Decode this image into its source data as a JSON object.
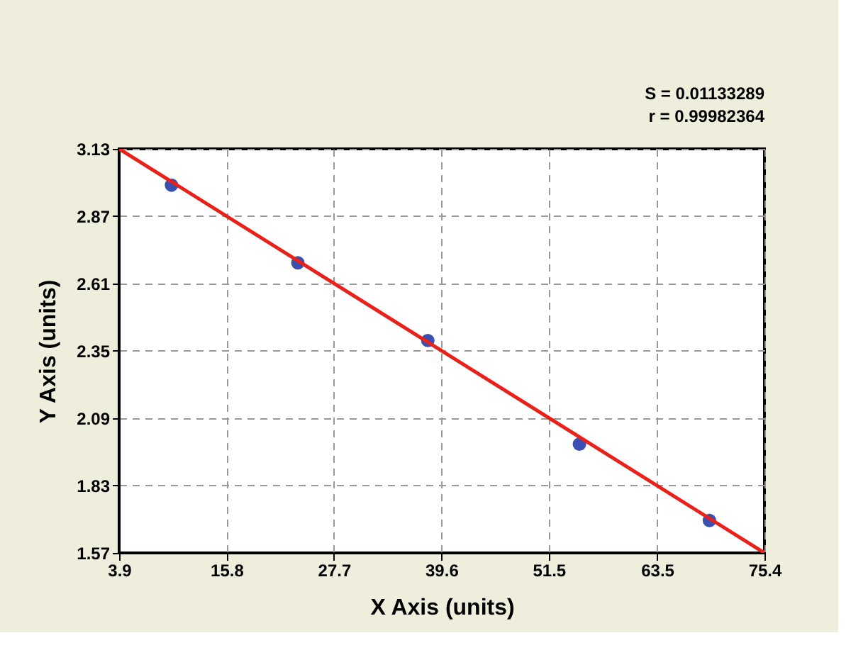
{
  "chart_data": {
    "type": "scatter",
    "xlabel": "X Axis (units)",
    "ylabel": "Y Axis (units)",
    "annotations": [
      "S = 0.01133289",
      "r = 0.99982364"
    ],
    "series": [
      {
        "color": "#3a4fb0",
        "x": [
          9.7,
          23.7,
          38.1,
          54.9,
          69.3
        ],
        "values": [
          2.99,
          2.69,
          2.39,
          1.99,
          1.695
        ],
        "marker": "circle"
      },
      {
        "type": "line",
        "color": "#e8221b",
        "x": [
          3.9,
          75.4
        ],
        "values": [
          3.13,
          1.57
        ],
        "marker": "none"
      }
    ],
    "xlim": [
      3.9,
      75.4
    ],
    "xticks": [
      3.9,
      15.8,
      27.7,
      39.6,
      51.5,
      63.5,
      75.4
    ],
    "ylim": [
      1.57,
      3.13
    ],
    "yticks": [
      1.57,
      1.83,
      2.09,
      2.35,
      2.61,
      2.87,
      3.13
    ],
    "grid": true,
    "line_style": "solid"
  }
}
